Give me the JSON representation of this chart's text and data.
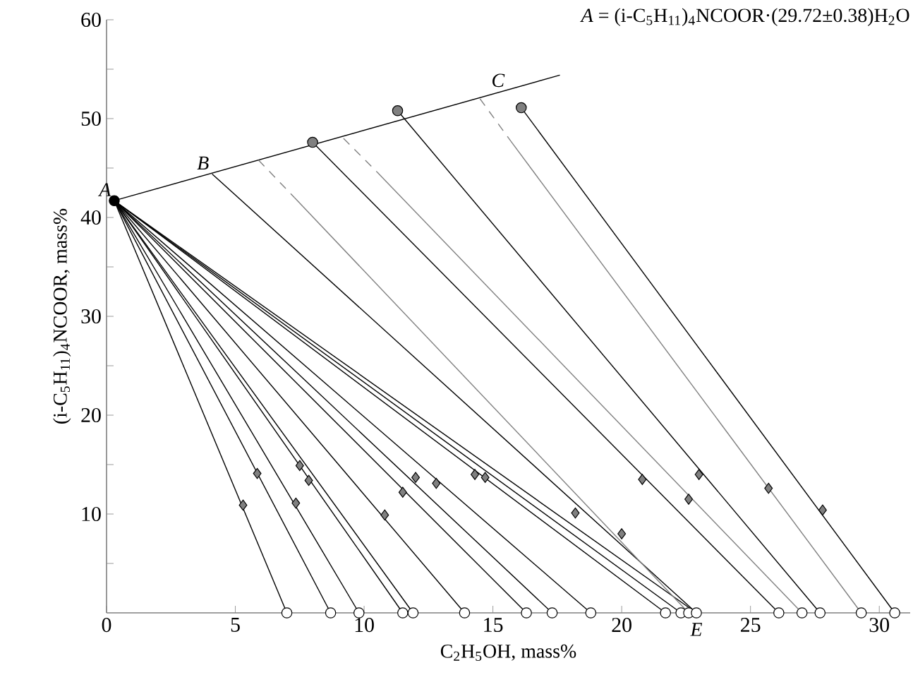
{
  "chart_data": {
    "type": "line",
    "xlabel": "C$_{2}$H$_{5}$OH, mass%",
    "ylabel": "(i-C$_{5}$H$_{11}$)$_{4}$NCOOR, mass%",
    "xlim": [
      0,
      31.2
    ],
    "ylim": [
      0,
      60
    ],
    "xticks": [
      0,
      5,
      10,
      15,
      20,
      25,
      30
    ],
    "yticks": [
      {
        "value": 5,
        "label": null
      },
      10,
      {
        "value": 15,
        "label": null
      },
      20,
      {
        "value": 25,
        "label": null
      },
      30,
      {
        "value": 35,
        "label": null
      },
      40,
      {
        "value": 45,
        "label": null
      },
      50,
      {
        "value": 55,
        "label": null
      },
      60
    ],
    "annotations": [
      "*A* = (i-C$_{5}$H$_{11}$)$_{4}$NCOOR·(29.72±0.38)H$_{2}$O",
      {
        "text": "*A*",
        "x": 0.3,
        "y": 41.7
      },
      {
        "text": "*B*",
        "x": 4.1,
        "y": 44.4
      },
      {
        "text": "*C*",
        "x": 15.2,
        "y": 52.6
      },
      {
        "text": "*E*",
        "x": 22.9,
        "y": 0
      }
    ],
    "series": [
      {
        "color": "#000000",
        "x": [
          0.3,
          17.6
        ],
        "values": [
          41.7,
          54.4
        ]
      },
      {
        "color": "#000000",
        "x": [
          0.3,
          7.0
        ],
        "values": [
          41.7,
          0
        ]
      },
      {
        "color": "#000000",
        "x": [
          0.3,
          8.7
        ],
        "values": [
          41.7,
          0
        ]
      },
      {
        "color": "#000000",
        "x": [
          0.3,
          9.8
        ],
        "values": [
          41.7,
          0
        ]
      },
      {
        "color": "#000000",
        "x": [
          0.3,
          11.5
        ],
        "values": [
          41.7,
          0
        ]
      },
      {
        "color": "#000000",
        "x": [
          0.3,
          11.9
        ],
        "values": [
          41.7,
          0
        ]
      },
      {
        "color": "#000000",
        "x": [
          0.3,
          13.9
        ],
        "values": [
          41.7,
          0
        ]
      },
      {
        "color": "#000000",
        "x": [
          0.3,
          16.3
        ],
        "values": [
          41.7,
          0
        ]
      },
      {
        "color": "#000000",
        "x": [
          0.3,
          17.3
        ],
        "values": [
          41.7,
          0
        ]
      },
      {
        "color": "#000000",
        "x": [
          0.3,
          18.8
        ],
        "values": [
          41.7,
          0
        ]
      },
      {
        "color": "#000000",
        "x": [
          0.3,
          21.7
        ],
        "values": [
          41.7,
          0
        ]
      },
      {
        "color": "#000000",
        "x": [
          0.3,
          22.3
        ],
        "values": [
          41.7,
          0
        ]
      },
      {
        "color": "#000000",
        "x": [
          0.3,
          22.9
        ],
        "values": [
          41.7,
          0
        ]
      },
      {
        "color": "#000000",
        "x": [
          4.1,
          22.9
        ],
        "values": [
          44.4,
          0
        ]
      },
      {
        "color": "#808080",
        "line_style": "dashed",
        "x": [
          5.9,
          7.3
        ],
        "values": [
          45.8,
          42.0
        ]
      },
      {
        "color": "#808080",
        "x": [
          7.3,
          22.6
        ],
        "values": [
          42.0,
          0
        ]
      },
      {
        "color": "#000000",
        "x": [
          8.0,
          26.1
        ],
        "values": [
          47.6,
          0
        ]
      },
      {
        "color": "#808080",
        "line_style": "dashed",
        "x": [
          9.2,
          10.5
        ],
        "values": [
          48.0,
          44.6
        ]
      },
      {
        "color": "#808080",
        "x": [
          10.5,
          27.0
        ],
        "values": [
          44.6,
          0
        ]
      },
      {
        "color": "#000000",
        "x": [
          11.3,
          27.7
        ],
        "values": [
          50.8,
          0
        ]
      },
      {
        "color": "#808080",
        "line_style": "dashed",
        "x": [
          14.5,
          15.7
        ],
        "values": [
          52.0,
          47.7
        ]
      },
      {
        "color": "#808080",
        "x": [
          15.7,
          29.3
        ],
        "values": [
          47.7,
          0
        ]
      },
      {
        "color": "#000000",
        "x": [
          16.1,
          30.6
        ],
        "values": [
          51.1,
          0
        ]
      },
      {
        "type": "scatter",
        "marker": "circle",
        "color": "#ffffff",
        "x": [
          7.0,
          8.7,
          9.8,
          11.5,
          11.9,
          13.9,
          16.3,
          17.3,
          18.8,
          21.7,
          22.3,
          22.6,
          22.9,
          26.1,
          27.0,
          27.7,
          29.3,
          30.6
        ],
        "values": [
          0,
          0,
          0,
          0,
          0,
          0,
          0,
          0,
          0,
          0,
          0,
          0,
          0,
          0,
          0,
          0,
          0,
          0
        ]
      },
      {
        "type": "scatter",
        "marker": "diamond",
        "color": "#808080",
        "x": [
          5.3,
          5.85,
          7.35,
          7.5,
          7.85,
          10.8,
          11.5,
          12.0,
          12.8,
          14.3,
          14.7,
          18.2,
          20.0,
          20.8,
          22.6,
          23.0,
          25.7,
          27.8
        ],
        "values": [
          10.9,
          14.1,
          11.1,
          14.9,
          13.4,
          9.9,
          12.2,
          13.7,
          13.1,
          14.0,
          13.7,
          10.1,
          8.0,
          13.5,
          11.5,
          14.0,
          12.6,
          10.4
        ]
      },
      {
        "type": "scatter",
        "marker": "circle",
        "color": "#808080",
        "x": [
          8.0,
          11.3,
          16.1
        ],
        "values": [
          47.6,
          50.8,
          51.1
        ]
      },
      {
        "type": "scatter",
        "marker": "circle",
        "color": "#000000",
        "x": [
          0.3
        ],
        "values": [
          41.7
        ]
      }
    ]
  }
}
